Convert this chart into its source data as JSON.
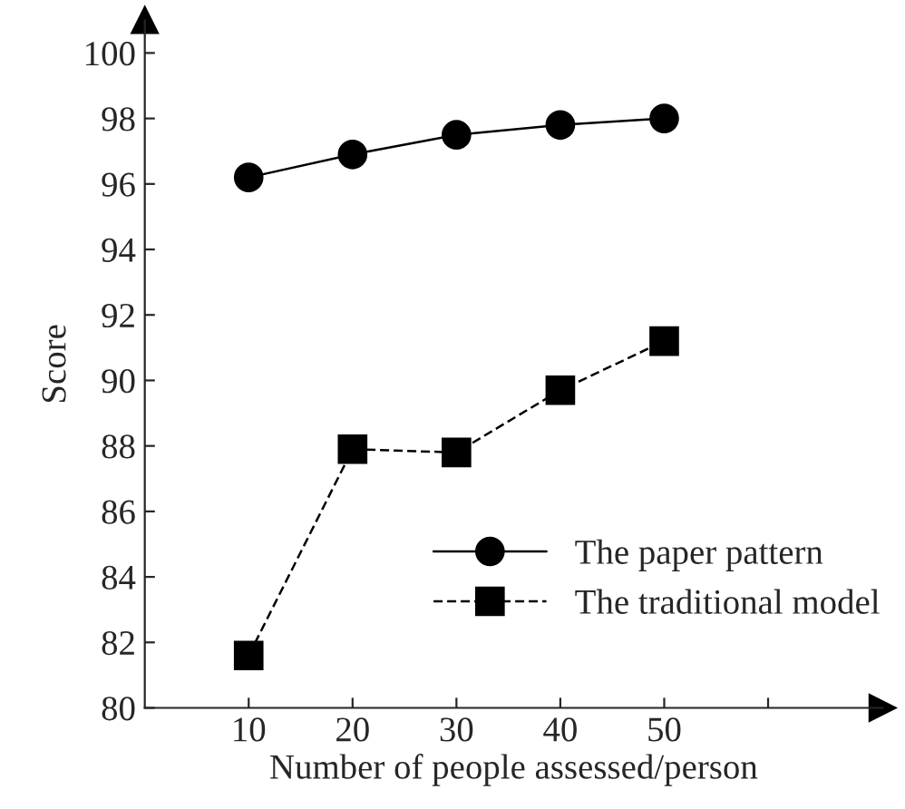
{
  "chart_data": {
    "type": "line",
    "xlabel": "Number of people assessed/person",
    "ylabel": "Score",
    "x": [
      10,
      20,
      30,
      40,
      50
    ],
    "series": [
      {
        "name": "The paper pattern",
        "color": "#000000",
        "marker": "circle",
        "line_style": "solid",
        "values": [
          96.2,
          96.9,
          97.5,
          97.8,
          98.0
        ]
      },
      {
        "name": "The traditional model",
        "color": "#000000",
        "marker": "square",
        "line_style": "dashed",
        "values": [
          81.6,
          87.9,
          87.8,
          89.7,
          91.2
        ]
      }
    ],
    "xlim": [
      0,
      71
    ],
    "ylim": [
      80,
      101
    ],
    "xticks": [
      10,
      20,
      30,
      40,
      50,
      {
        "value": 60,
        "label": null
      }
    ],
    "yticks": [
      80,
      82,
      84,
      86,
      88,
      90,
      92,
      94,
      96,
      98,
      100
    ],
    "grid": false,
    "legend": "lower right"
  }
}
